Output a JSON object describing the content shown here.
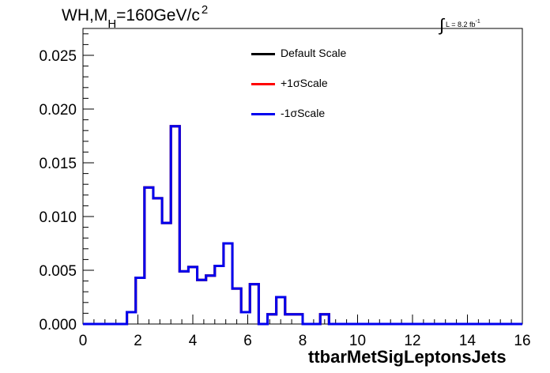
{
  "title": {
    "main": "WH,M",
    "sub": "H",
    "tail": "=160GeV/c",
    "sup": "2"
  },
  "lumi": {
    "text": "L = 8.2 fb",
    "sup": "-1"
  },
  "chart_data": {
    "type": "histogram",
    "xlabel": "ttbarMetSigLeptonsJets",
    "ylabel": "",
    "xlim": [
      0,
      16
    ],
    "ylim": [
      0,
      0.0275
    ],
    "grid": false,
    "legend_placement": "top-center",
    "x_ticks": [
      0,
      2,
      4,
      6,
      8,
      10,
      12,
      14,
      16
    ],
    "x_tick_labels": [
      "0",
      "2",
      "4",
      "6",
      "8",
      "10",
      "12",
      "14",
      "16"
    ],
    "y_ticks": [
      0,
      0.005,
      0.01,
      0.015,
      0.02,
      0.025
    ],
    "y_tick_labels": [
      "0.000",
      "0.005",
      "0.010",
      "0.015",
      "0.020",
      "0.025"
    ],
    "bin_width": 0.32,
    "bin_edges_start": 0,
    "series": [
      {
        "name": "Default Scale",
        "color": "#000000",
        "values": [
          0,
          0,
          0,
          0,
          0,
          0.0011,
          0.0043,
          0.0127,
          0.0117,
          0.0094,
          0.0184,
          0.0049,
          0.0053,
          0.0041,
          0.0045,
          0.0054,
          0.0075,
          0.0033,
          0.0011,
          0.0037,
          0,
          0.0009,
          0.0025,
          0.0009,
          0.0009,
          0,
          0,
          0.0009,
          0,
          0,
          0,
          0,
          0,
          0,
          0,
          0,
          0,
          0,
          0,
          0,
          0,
          0,
          0,
          0,
          0,
          0,
          0,
          0,
          0,
          0
        ]
      },
      {
        "name": "+1σScale",
        "color": "#ff0000",
        "values": [
          0,
          0,
          0,
          0,
          0,
          0.0011,
          0.0043,
          0.0127,
          0.0117,
          0.0094,
          0.0184,
          0.0049,
          0.0053,
          0.0041,
          0.0045,
          0.0054,
          0.0075,
          0.0033,
          0.0011,
          0.0037,
          0,
          0.0009,
          0.0025,
          0.0009,
          0.0009,
          0,
          0,
          0.0009,
          0,
          0,
          0,
          0,
          0,
          0,
          0,
          0,
          0,
          0,
          0,
          0,
          0,
          0,
          0,
          0,
          0,
          0,
          0,
          0,
          0,
          0
        ]
      },
      {
        "name": "-1σScale",
        "color": "#0000ee",
        "values": [
          0,
          0,
          0,
          0,
          0,
          0.0011,
          0.0043,
          0.0127,
          0.0117,
          0.0094,
          0.0184,
          0.0049,
          0.0053,
          0.0041,
          0.0045,
          0.0054,
          0.0075,
          0.0033,
          0.0011,
          0.0037,
          0,
          0.0009,
          0.0025,
          0.0009,
          0.0009,
          0,
          0,
          0.0009,
          0,
          0,
          0,
          0,
          0,
          0,
          0,
          0,
          0,
          0,
          0,
          0,
          0,
          0,
          0,
          0,
          0,
          0,
          0,
          0,
          0,
          0
        ]
      }
    ]
  }
}
